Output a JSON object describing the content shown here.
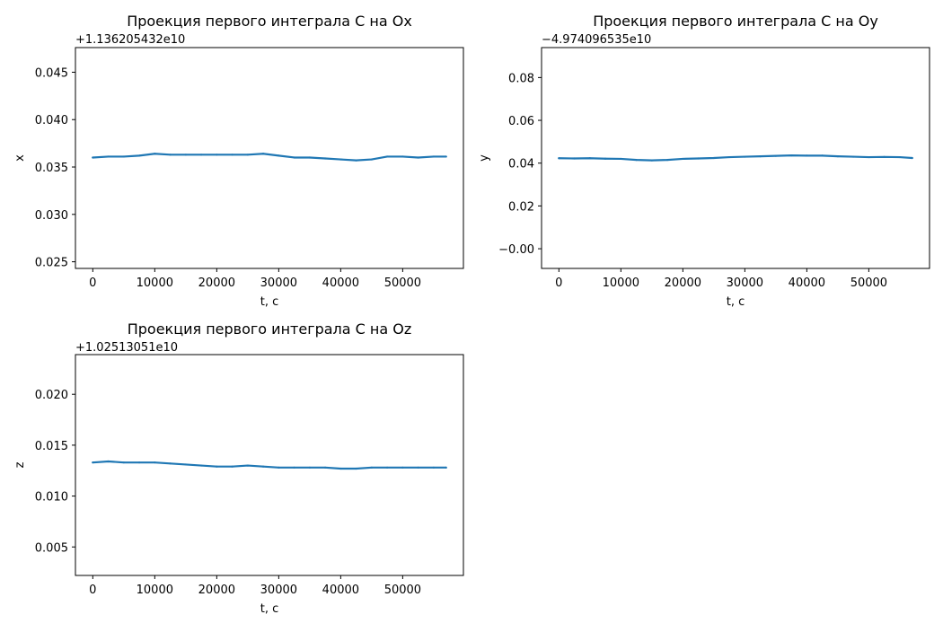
{
  "chart_data": [
    {
      "type": "line",
      "title": "Проекция первого интеграла C на Ox",
      "xlabel": "t, c",
      "ylabel": "x",
      "offset_label": "+1.136205432e10",
      "xlim": [
        -2800,
        59800
      ],
      "ylim": [
        0.0243,
        0.0476
      ],
      "xticks": [
        0,
        10000,
        20000,
        30000,
        40000,
        50000
      ],
      "xtick_labels": [
        "0",
        "10000",
        "20000",
        "30000",
        "40000",
        "50000"
      ],
      "yticks": [
        0.025,
        0.03,
        0.035,
        0.04,
        0.045
      ],
      "ytick_labels": [
        "0.025",
        "0.030",
        "0.035",
        "0.040",
        "0.045"
      ],
      "grid": false,
      "series": [
        {
          "color": "#1f77b4",
          "x": [
            0,
            2500,
            5000,
            7500,
            10000,
            12500,
            15000,
            17500,
            20000,
            22500,
            25000,
            27500,
            30000,
            32500,
            35000,
            37500,
            40000,
            42500,
            45000,
            47500,
            50000,
            52500,
            55000,
            57000
          ],
          "y": [
            0.036,
            0.0361,
            0.0361,
            0.0362,
            0.0364,
            0.0363,
            0.0363,
            0.0363,
            0.0363,
            0.0363,
            0.0363,
            0.0364,
            0.0362,
            0.036,
            0.036,
            0.0359,
            0.0358,
            0.0357,
            0.0358,
            0.0361,
            0.0361,
            0.036,
            0.0361,
            0.0361
          ]
        }
      ]
    },
    {
      "type": "line",
      "title": "Проекция первого интеграла C на Oy",
      "xlabel": "t, c",
      "ylabel": "y",
      "offset_label": "−4.974096535e10",
      "xlim": [
        -2800,
        59800
      ],
      "ylim": [
        -0.0092,
        0.094
      ],
      "xticks": [
        0,
        10000,
        20000,
        30000,
        40000,
        50000
      ],
      "xtick_labels": [
        "0",
        "10000",
        "20000",
        "30000",
        "40000",
        "50000"
      ],
      "yticks": [
        0.0,
        0.02,
        0.04,
        0.06,
        0.08
      ],
      "ytick_labels": [
        "−0.00",
        "0.02",
        "0.04",
        "0.06",
        "0.08"
      ],
      "grid": false,
      "series": [
        {
          "color": "#1f77b4",
          "x": [
            0,
            2500,
            5000,
            7500,
            10000,
            12500,
            15000,
            17500,
            20000,
            22500,
            25000,
            27500,
            30000,
            32500,
            35000,
            37500,
            40000,
            42500,
            45000,
            47500,
            50000,
            52500,
            55000,
            57000
          ],
          "y": [
            0.0423,
            0.0422,
            0.0423,
            0.0421,
            0.042,
            0.0415,
            0.0413,
            0.0415,
            0.042,
            0.0422,
            0.0424,
            0.0428,
            0.043,
            0.0432,
            0.0434,
            0.0436,
            0.0435,
            0.0435,
            0.0432,
            0.043,
            0.0428,
            0.0429,
            0.0428,
            0.0424
          ]
        }
      ]
    },
    {
      "type": "line",
      "title": "Проекция первого интеграла C на Oz",
      "xlabel": "t, c",
      "ylabel": "z",
      "offset_label": "+1.02513051e10",
      "xlim": [
        -2800,
        59800
      ],
      "ylim": [
        0.0022,
        0.0239
      ],
      "xticks": [
        0,
        10000,
        20000,
        30000,
        40000,
        50000
      ],
      "xtick_labels": [
        "0",
        "10000",
        "20000",
        "30000",
        "40000",
        "50000"
      ],
      "yticks": [
        0.005,
        0.01,
        0.015,
        0.02
      ],
      "ytick_labels": [
        "0.005",
        "0.010",
        "0.015",
        "0.020"
      ],
      "grid": false,
      "series": [
        {
          "color": "#1f77b4",
          "x": [
            0,
            2500,
            5000,
            7500,
            10000,
            12500,
            15000,
            17500,
            20000,
            22500,
            25000,
            27500,
            30000,
            32500,
            35000,
            37500,
            40000,
            42500,
            45000,
            47500,
            50000,
            52500,
            55000,
            57000
          ],
          "y": [
            0.0133,
            0.0134,
            0.0133,
            0.0133,
            0.0133,
            0.0132,
            0.0131,
            0.013,
            0.0129,
            0.0129,
            0.013,
            0.0129,
            0.0128,
            0.0128,
            0.0128,
            0.0128,
            0.0127,
            0.0127,
            0.0128,
            0.0128,
            0.0128,
            0.0128,
            0.0128,
            0.0128
          ]
        }
      ]
    }
  ]
}
